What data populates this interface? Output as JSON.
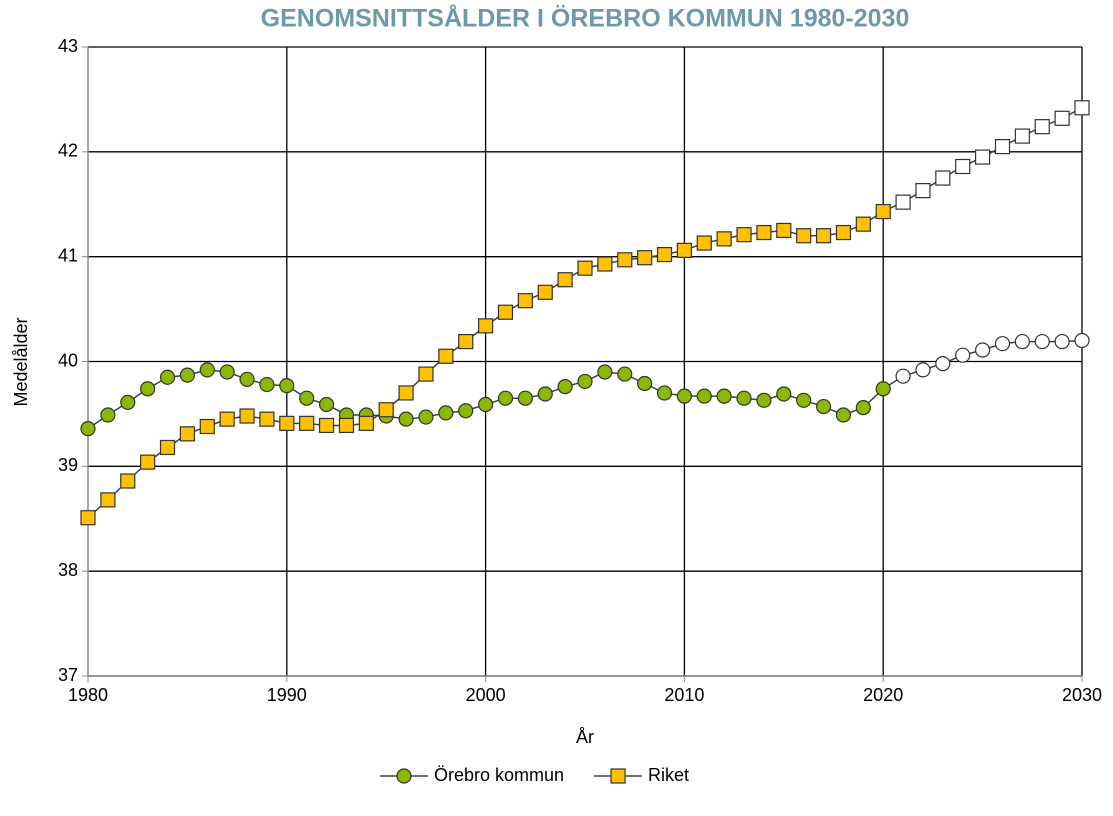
{
  "chart_data": {
    "type": "line",
    "title": "GENOMSNITTSÅLDER I ÖREBRO KOMMUN 1980-2030",
    "xlabel": "År",
    "ylabel": "Medelålder",
    "x": [
      1980,
      1981,
      1982,
      1983,
      1984,
      1985,
      1986,
      1987,
      1988,
      1989,
      1990,
      1991,
      1992,
      1993,
      1994,
      1995,
      1996,
      1997,
      1998,
      1999,
      2000,
      2001,
      2002,
      2003,
      2004,
      2005,
      2006,
      2007,
      2008,
      2009,
      2010,
      2011,
      2012,
      2013,
      2014,
      2015,
      2016,
      2017,
      2018,
      2019,
      2020,
      2021,
      2022,
      2023,
      2024,
      2025,
      2026,
      2027,
      2028,
      2029,
      2030
    ],
    "series": [
      {
        "name": "Örebro kommun",
        "color": "#8db800",
        "marker": "circle",
        "values": [
          39.36,
          39.49,
          39.61,
          39.74,
          39.85,
          39.87,
          39.92,
          39.9,
          39.83,
          39.78,
          39.77,
          39.65,
          39.59,
          39.49,
          39.49,
          39.48,
          39.45,
          39.47,
          39.51,
          39.53,
          39.59,
          39.65,
          39.65,
          39.69,
          39.76,
          39.81,
          39.9,
          39.88,
          39.79,
          39.7,
          39.67,
          39.67,
          39.67,
          39.65,
          39.63,
          39.69,
          39.63,
          39.57,
          39.49,
          39.56,
          39.74,
          39.86,
          39.92,
          39.98,
          40.06,
          40.11,
          40.17,
          40.19,
          40.19,
          40.19,
          40.2
        ]
      },
      {
        "name": "Riket",
        "color": "#ffc000",
        "marker": "square",
        "values": [
          38.51,
          38.68,
          38.86,
          39.04,
          39.18,
          39.31,
          39.38,
          39.45,
          39.48,
          39.45,
          39.41,
          39.41,
          39.39,
          39.39,
          39.41,
          39.54,
          39.7,
          39.88,
          40.05,
          40.19,
          40.34,
          40.47,
          40.58,
          40.66,
          40.78,
          40.89,
          40.93,
          40.97,
          40.99,
          41.02,
          41.06,
          41.13,
          41.17,
          41.21,
          41.23,
          41.25,
          41.2,
          41.2,
          41.23,
          41.31,
          41.43,
          41.52,
          41.63,
          41.75,
          41.86,
          41.95,
          42.05,
          42.15,
          42.24,
          42.32,
          42.42
        ]
      }
    ],
    "hollow_from": 2021,
    "xlim": [
      1980,
      2030
    ],
    "xticks": [
      1980,
      1990,
      2000,
      2010,
      2020,
      2030
    ],
    "ylim": [
      37,
      43
    ],
    "yticks": [
      37,
      38,
      39,
      40,
      41,
      42,
      43
    ],
    "grid": true,
    "legend": "bottom"
  }
}
